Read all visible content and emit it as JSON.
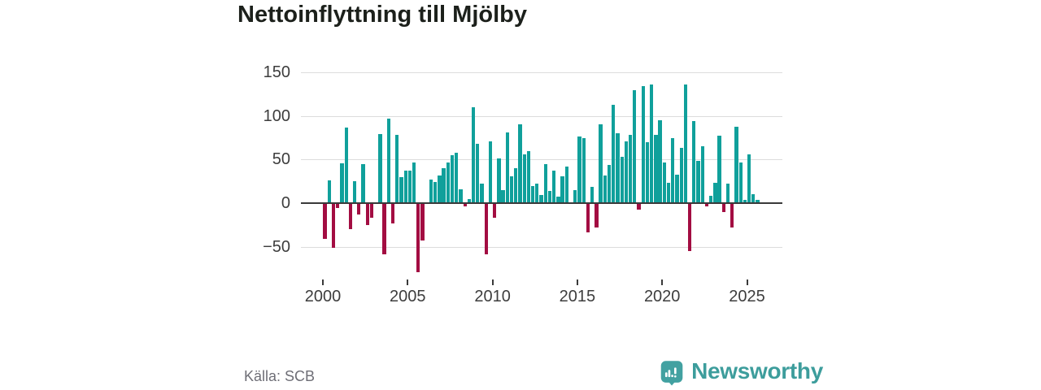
{
  "title": "Nettoinflyttning till Mjölby",
  "source": "Källa: SCB",
  "brand": {
    "name": "Newsworthy",
    "icon": "bar-chart-speech-bubble-icon",
    "color": "#3d9d9c"
  },
  "colors": {
    "positive_bar": "#10a09b",
    "negative_bar": "#a30d42",
    "gridline": "#dcdcdc",
    "zero_axis": "#3a3a3a",
    "axis_text": "#3d3d3d",
    "title_text": "#1c201b",
    "source_text": "#6e6e76",
    "background": "#ffffff"
  },
  "chart_data": {
    "type": "bar",
    "title": "Nettoinflyttning till Mjölby",
    "frequency": "quarterly",
    "first_period": "2000 Q1",
    "last_period": "2025 Q3",
    "grid": true,
    "ylim": [
      -84,
      160
    ],
    "y_ticks": [
      150,
      100,
      50,
      0,
      -50
    ],
    "y_tick_labels": [
      "150",
      "100",
      "50",
      "0",
      "−50"
    ],
    "x_tick_labels": [
      "2000",
      "2005",
      "2010",
      "2015",
      "2020",
      "2025"
    ],
    "values": [
      -41,
      26,
      -51,
      -6,
      46,
      87,
      -30,
      25,
      -13,
      45,
      -25,
      -17,
      1,
      79,
      -59,
      97,
      -23,
      78,
      30,
      37,
      37,
      47,
      -79,
      -43,
      1,
      27,
      24,
      32,
      40,
      47,
      55,
      58,
      16,
      -4,
      5,
      110,
      68,
      22,
      -59,
      71,
      -17,
      51,
      15,
      81,
      31,
      40,
      90,
      56,
      60,
      20,
      22,
      9,
      45,
      14,
      37,
      7,
      31,
      42,
      1,
      15,
      76,
      75,
      -34,
      19,
      -28,
      90,
      32,
      44,
      113,
      80,
      53,
      71,
      78,
      130,
      -7,
      134,
      70,
      136,
      78,
      95,
      47,
      23,
      75,
      33,
      63,
      136,
      -55,
      94,
      48,
      65,
      -4,
      8,
      23,
      77,
      -10,
      22,
      -28,
      88,
      47,
      4,
      56,
      10,
      4
    ]
  }
}
